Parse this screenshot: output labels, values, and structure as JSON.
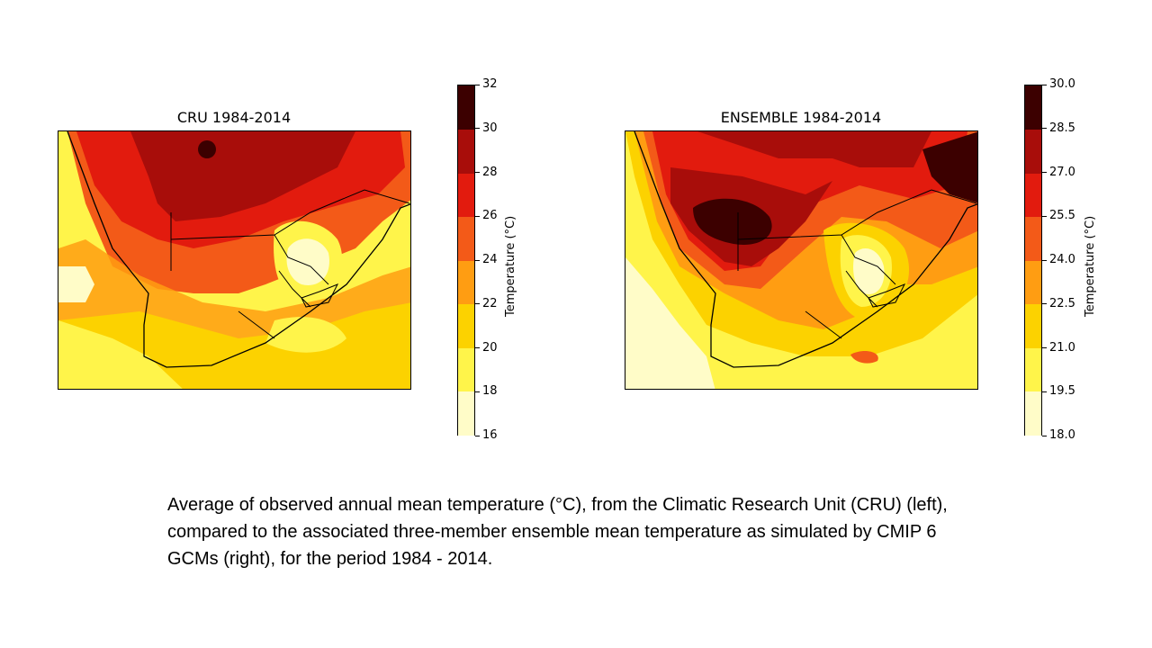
{
  "maps": [
    {
      "id": "cru",
      "title": "CRU 1984-2014",
      "colorbar": {
        "label": "Temperature (°C)",
        "ticks": [
          "16",
          "18",
          "20",
          "22",
          "24",
          "26",
          "28",
          "30",
          "32"
        ],
        "colors": [
          "#fffcc8",
          "#fff44a",
          "#fcd200",
          "#ff9d12",
          "#f35a18",
          "#e21b0e",
          "#a80d0a",
          "#3c0000"
        ]
      }
    },
    {
      "id": "ensemble",
      "title": "ENSEMBLE 1984-2014",
      "colorbar": {
        "label": "Temperature (°C)",
        "ticks": [
          "18.0",
          "19.5",
          "21.0",
          "22.5",
          "24.0",
          "25.5",
          "27.0",
          "28.5",
          "30.0"
        ],
        "colors": [
          "#fffcc8",
          "#fff44a",
          "#fcd200",
          "#ff9d12",
          "#f35a18",
          "#e21b0e",
          "#a80d0a",
          "#3c0000"
        ]
      }
    }
  ],
  "caption": "Average of observed annual mean temperature (°C), from the Climatic Research Unit (CRU) (left), compared to the associated three-member ensemble mean temperature as simulated by CMIP 6 GCMs (right), for the period 1984 - 2014."
}
